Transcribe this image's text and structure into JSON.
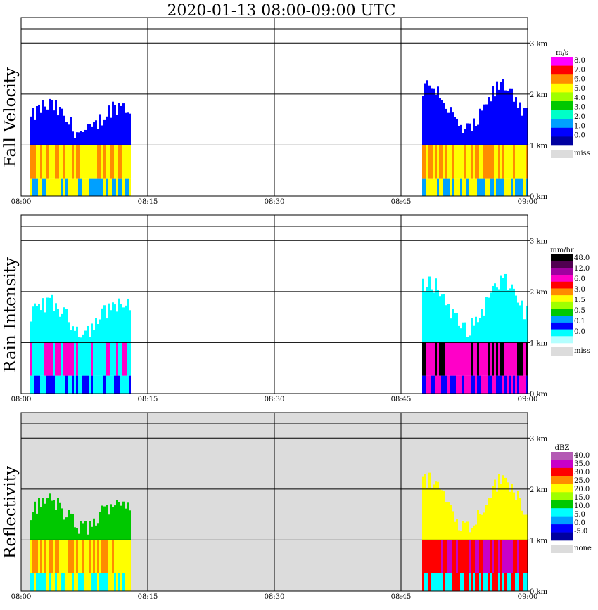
{
  "title": "2020-01-13   08:00-09:00 UTC",
  "time_labels": [
    "08:00",
    "08:15",
    "08:30",
    "08:45",
    "09:00"
  ],
  "height_labels": [
    "0 km",
    "1 km",
    "2 km",
    "3 km"
  ],
  "chart_data": [
    {
      "type": "heatmap",
      "ylabel": "Fall Velocity",
      "unit": "m/s",
      "xlim": [
        "08:00",
        "09:00"
      ],
      "ylim_km": [
        0,
        3.5
      ],
      "background": "#ffffff",
      "legend": {
        "labels": [
          "8.0",
          "7.0",
          "6.0",
          "5.0",
          "4.0",
          "3.0",
          "2.0",
          "1.0",
          "0.0"
        ],
        "colors": [
          "#ff00ff",
          "#ff0000",
          "#ff8c00",
          "#ffff00",
          "#a0ff00",
          "#00c800",
          "#00ffc8",
          "#00a0ff",
          "#0000ff",
          "#0000a0"
        ],
        "missing_label": "miss",
        "missing_color": "#dcdcdc"
      },
      "clusters": [
        {
          "t0": 1,
          "t1": 13,
          "top_km": 1.6,
          "layer_km": 1.0,
          "low": "#00a0ff",
          "mid": "#ffff00",
          "high": "#ff8c00",
          "top": "#0000ff"
        },
        {
          "t0": 47.5,
          "t1": 60,
          "top_km": 2.0,
          "layer_km": 1.0,
          "low": "#00a0ff",
          "mid": "#ffff00",
          "high": "#ff8c00",
          "top": "#0000ff"
        }
      ]
    },
    {
      "type": "heatmap",
      "ylabel": "Rain Intensity",
      "unit": "mm/hr",
      "xlim": [
        "08:00",
        "09:00"
      ],
      "ylim_km": [
        0,
        3.5
      ],
      "background": "#ffffff",
      "legend": {
        "labels": [
          "48.0",
          "12.0",
          "6.0",
          "3.0",
          "1.5",
          "0.5",
          "0.1",
          "0.0"
        ],
        "colors": [
          "#000000",
          "#500050",
          "#a000a0",
          "#ff00c8",
          "#ff0000",
          "#ff8c00",
          "#ffff00",
          "#a0ff00",
          "#00c800",
          "#00a0ff",
          "#0000ff",
          "#00ffff",
          "#b4ffff"
        ],
        "missing_label": "miss",
        "missing_color": "#dcdcdc"
      },
      "clusters": [
        {
          "t0": 1,
          "t1": 13,
          "top_km": 1.6,
          "layer_km": 1.0,
          "low": "#0000ff",
          "mid": "#00ffff",
          "high": "#ff00c8",
          "top": "#00ffff"
        },
        {
          "t0": 47.5,
          "t1": 60,
          "top_km": 2.0,
          "layer_km": 1.0,
          "low": "#0000ff",
          "mid": "#ff00c8",
          "high": "#000000",
          "top": "#00ffff"
        }
      ]
    },
    {
      "type": "heatmap",
      "ylabel": "Reflectivity",
      "unit": "dBZ",
      "xlim": [
        "08:00",
        "09:00"
      ],
      "ylim_km": [
        0,
        3.5
      ],
      "background": "#dcdcdc",
      "legend": {
        "labels": [
          "40.0",
          "35.0",
          "30.0",
          "25.0",
          "20.0",
          "15.0",
          "10.0",
          "5.0",
          "0.0",
          "-5.0"
        ],
        "colors": [
          "#b45ab4",
          "#c800c8",
          "#ff0000",
          "#ff8c00",
          "#ffff00",
          "#a0ff00",
          "#00c800",
          "#00ffff",
          "#00a0ff",
          "#0000ff",
          "#0000a0"
        ],
        "missing_label": "none",
        "missing_color": "#dcdcdc"
      },
      "clusters": [
        {
          "t0": 1,
          "t1": 13,
          "top_km": 1.6,
          "layer_km": 1.0,
          "low": "#00ffff",
          "mid": "#ffff00",
          "high": "#ff8c00",
          "top": "#00c800"
        },
        {
          "t0": 47.5,
          "t1": 60,
          "top_km": 2.0,
          "layer_km": 1.0,
          "low": "#00ffff",
          "mid": "#ff0000",
          "high": "#c800c8",
          "top": "#ffff00"
        }
      ]
    }
  ]
}
